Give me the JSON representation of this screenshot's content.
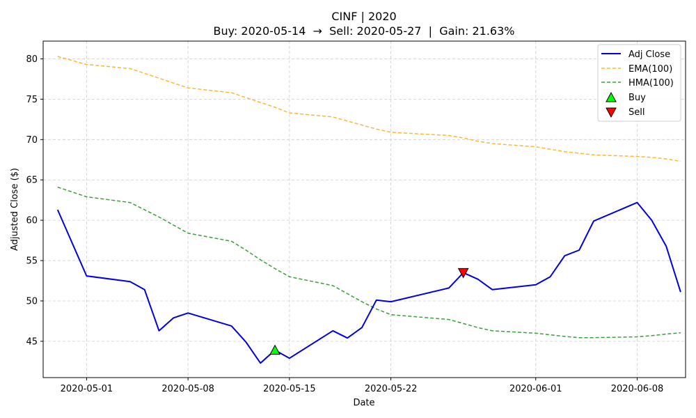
{
  "chart_data": {
    "type": "line",
    "title": "CINF | 2020",
    "subtitle": "Buy: 2020-05-14  →  Sell: 2020-05-27  |  Gain: 21.63%",
    "xlabel": "Date",
    "ylabel": "Adjusted Close ($)",
    "xlim": [
      "2020-04-28",
      "2020-06-12"
    ],
    "ylim": [
      40.5,
      82.2
    ],
    "x_ticks": [
      "2020-05-01",
      "2020-05-08",
      "2020-05-15",
      "2020-05-22",
      "2020-06-01",
      "2020-06-08"
    ],
    "y_ticks": [
      45,
      50,
      55,
      60,
      65,
      70,
      75,
      80
    ],
    "grid": true,
    "legend_position": "top-right",
    "series": [
      {
        "name": "Adj Close",
        "color": "#0000dd",
        "style": "solid",
        "points": [
          [
            "2020-04-29",
            61.3
          ],
          [
            "2020-05-01",
            53.1
          ],
          [
            "2020-05-04",
            52.4
          ],
          [
            "2020-05-05",
            51.4
          ],
          [
            "2020-05-06",
            46.3
          ],
          [
            "2020-05-07",
            47.9
          ],
          [
            "2020-05-08",
            48.5
          ],
          [
            "2020-05-11",
            46.9
          ],
          [
            "2020-05-12",
            44.9
          ],
          [
            "2020-05-13",
            42.3
          ],
          [
            "2020-05-14",
            43.9
          ],
          [
            "2020-05-15",
            42.9
          ],
          [
            "2020-05-18",
            46.3
          ],
          [
            "2020-05-19",
            45.4
          ],
          [
            "2020-05-20",
            46.7
          ],
          [
            "2020-05-21",
            50.1
          ],
          [
            "2020-05-22",
            49.9
          ],
          [
            "2020-05-26",
            51.6
          ],
          [
            "2020-05-27",
            53.5
          ],
          [
            "2020-05-28",
            52.7
          ],
          [
            "2020-05-29",
            51.4
          ],
          [
            "2020-06-01",
            52.0
          ],
          [
            "2020-06-02",
            53.0
          ],
          [
            "2020-06-03",
            55.6
          ],
          [
            "2020-06-04",
            56.3
          ],
          [
            "2020-06-05",
            59.9
          ],
          [
            "2020-06-08",
            62.2
          ],
          [
            "2020-06-09",
            60.0
          ],
          [
            "2020-06-10",
            56.8
          ],
          [
            "2020-06-11",
            51.1
          ]
        ]
      },
      {
        "name": "EMA(100)",
        "color": "#ffb533",
        "style": "dashed",
        "points": [
          [
            "2020-04-29",
            80.3
          ],
          [
            "2020-05-01",
            79.3
          ],
          [
            "2020-05-04",
            78.8
          ],
          [
            "2020-05-05",
            78.2
          ],
          [
            "2020-05-06",
            77.6
          ],
          [
            "2020-05-07",
            77.0
          ],
          [
            "2020-05-08",
            76.4
          ],
          [
            "2020-05-11",
            75.8
          ],
          [
            "2020-05-12",
            75.2
          ],
          [
            "2020-05-13",
            74.6
          ],
          [
            "2020-05-14",
            74.0
          ],
          [
            "2020-05-15",
            73.3
          ],
          [
            "2020-05-18",
            72.8
          ],
          [
            "2020-05-19",
            72.3
          ],
          [
            "2020-05-20",
            71.8
          ],
          [
            "2020-05-21",
            71.3
          ],
          [
            "2020-05-22",
            70.9
          ],
          [
            "2020-05-26",
            70.5
          ],
          [
            "2020-05-27",
            70.2
          ],
          [
            "2020-05-28",
            69.8
          ],
          [
            "2020-05-29",
            69.5
          ],
          [
            "2020-06-01",
            69.1
          ],
          [
            "2020-06-02",
            68.8
          ],
          [
            "2020-06-03",
            68.5
          ],
          [
            "2020-06-04",
            68.3
          ],
          [
            "2020-06-05",
            68.1
          ],
          [
            "2020-06-08",
            67.9
          ],
          [
            "2020-06-09",
            67.8
          ],
          [
            "2020-06-10",
            67.6
          ],
          [
            "2020-06-11",
            67.3
          ]
        ]
      },
      {
        "name": "HMA(100)",
        "color": "#3a9e3a",
        "style": "dashed",
        "points": [
          [
            "2020-04-29",
            64.1
          ],
          [
            "2020-05-01",
            62.9
          ],
          [
            "2020-05-04",
            62.2
          ],
          [
            "2020-05-05",
            61.3
          ],
          [
            "2020-05-06",
            60.4
          ],
          [
            "2020-05-07",
            59.4
          ],
          [
            "2020-05-08",
            58.4
          ],
          [
            "2020-05-11",
            57.4
          ],
          [
            "2020-05-12",
            56.3
          ],
          [
            "2020-05-13",
            55.1
          ],
          [
            "2020-05-14",
            54.0
          ],
          [
            "2020-05-15",
            53.0
          ],
          [
            "2020-05-18",
            51.9
          ],
          [
            "2020-05-19",
            50.9
          ],
          [
            "2020-05-20",
            49.9
          ],
          [
            "2020-05-21",
            49.0
          ],
          [
            "2020-05-22",
            48.3
          ],
          [
            "2020-05-26",
            47.7
          ],
          [
            "2020-05-27",
            47.2
          ],
          [
            "2020-05-28",
            46.7
          ],
          [
            "2020-05-29",
            46.3
          ],
          [
            "2020-06-01",
            46.0
          ],
          [
            "2020-06-02",
            45.8
          ],
          [
            "2020-06-03",
            45.6
          ],
          [
            "2020-06-04",
            45.45
          ],
          [
            "2020-06-05",
            45.45
          ],
          [
            "2020-06-08",
            45.55
          ],
          [
            "2020-06-09",
            45.7
          ],
          [
            "2020-06-10",
            45.9
          ],
          [
            "2020-06-11",
            46.05
          ]
        ]
      }
    ],
    "markers": [
      {
        "name": "Buy",
        "symbol": "triangle-up",
        "color": "#00ff00",
        "x": "2020-05-14",
        "y": 43.9
      },
      {
        "name": "Sell",
        "symbol": "triangle-down",
        "color": "#ff0000",
        "x": "2020-05-27",
        "y": 53.5
      }
    ]
  }
}
